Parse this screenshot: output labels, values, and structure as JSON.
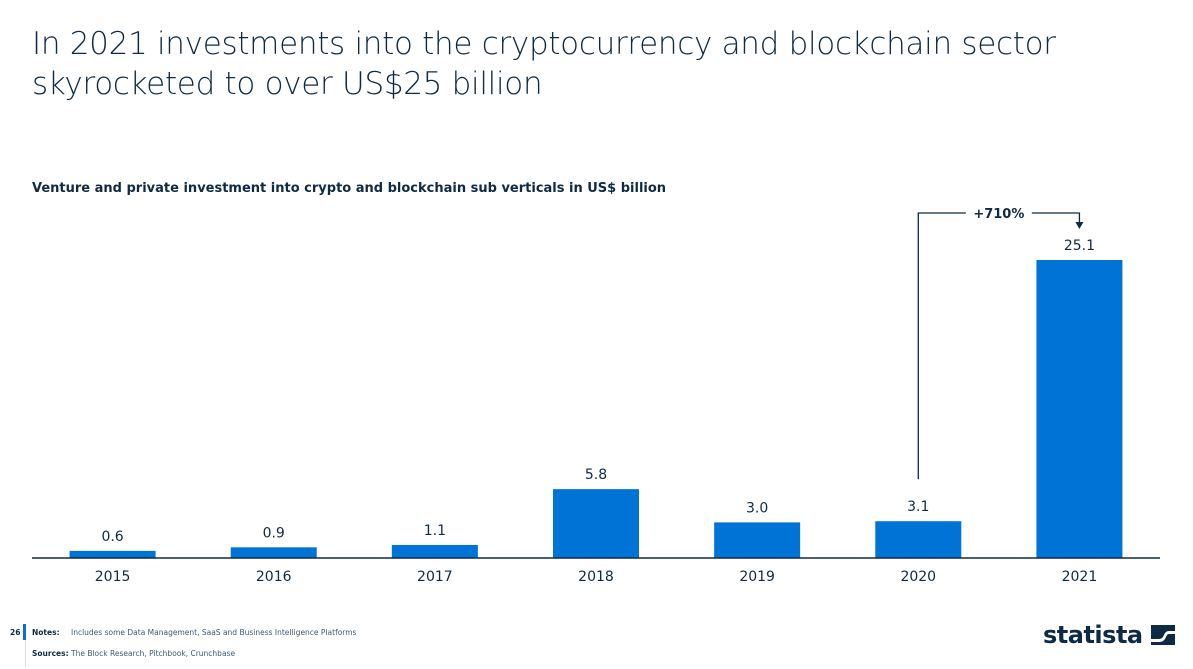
{
  "title": "In 2021 investments into the cryptocurrency and blockchain sector skyrocketed to over US$25 billion",
  "chart_data": {
    "type": "bar",
    "title": "Venture and private investment into crypto and blockchain sub verticals in US$ billion",
    "categories": [
      "2015",
      "2016",
      "2017",
      "2018",
      "2019",
      "2020",
      "2021"
    ],
    "values": [
      0.6,
      0.9,
      1.1,
      5.8,
      3.0,
      3.1,
      25.1
    ],
    "value_labels": [
      "0.6",
      "0.9",
      "1.1",
      "5.8",
      "3.0",
      "3.1",
      "25.1"
    ],
    "ylim": [
      0,
      25.1
    ],
    "grid": false,
    "bar_color": "#0074d6",
    "annotation": {
      "text": "+710%",
      "from": "2020",
      "to": "2021"
    }
  },
  "footer": {
    "page_number": "26",
    "notes_label": "Notes:",
    "notes": "Includes some Data Management, SaaS and Business Intelligence Platforms",
    "sources_label": "Sources:",
    "sources": "The Block Research, Pitchbook, Crunchbase",
    "logo": "statista",
    "accent": "#0074d6"
  }
}
